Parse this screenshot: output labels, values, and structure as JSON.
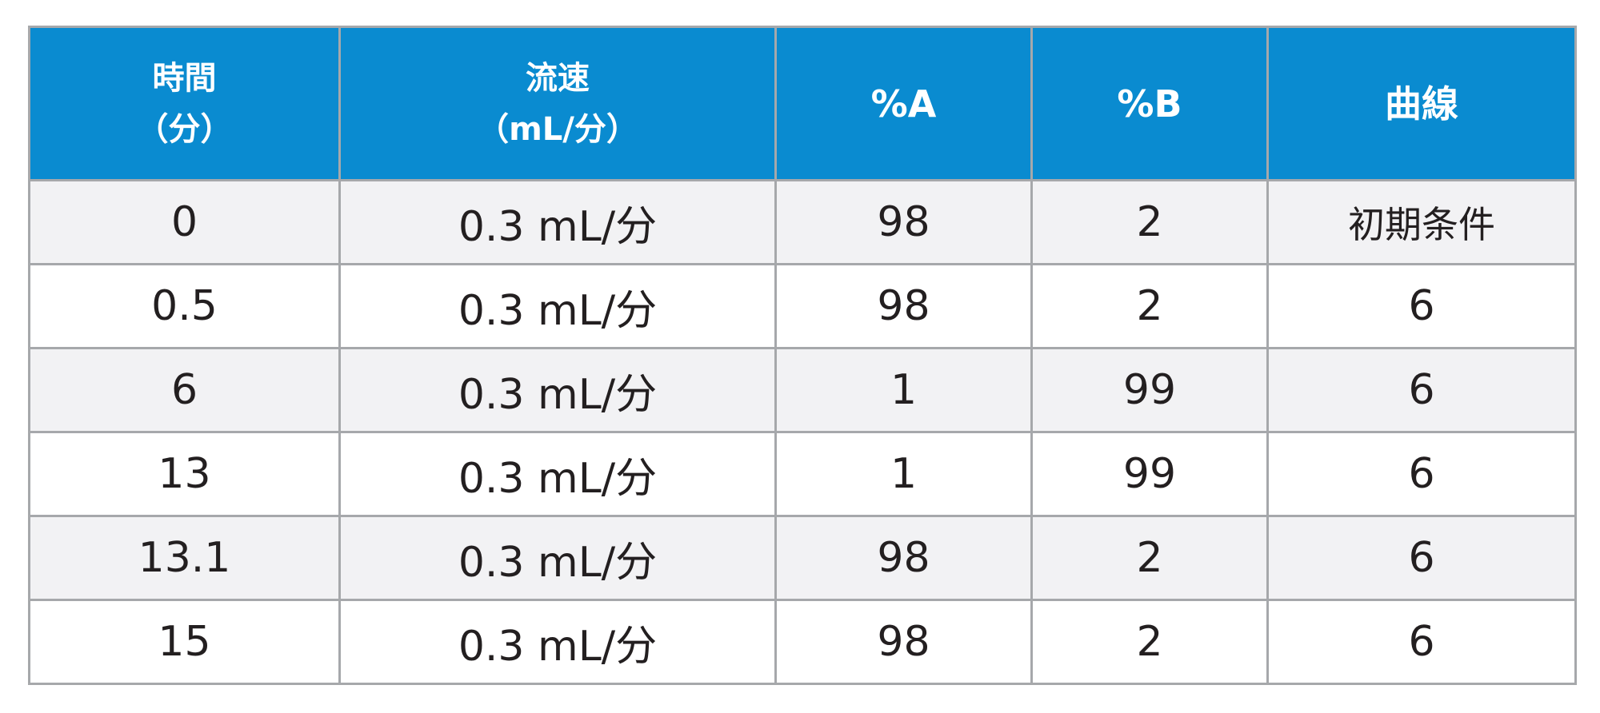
{
  "table": {
    "headers": [
      {
        "line1": "時間",
        "line2": "（分）"
      },
      {
        "line1": "流速",
        "line2": "（mL/分）"
      },
      {
        "line1": "%A",
        "line2": ""
      },
      {
        "line1": "%B",
        "line2": ""
      },
      {
        "line1": "曲線",
        "line2": ""
      }
    ],
    "rows": [
      {
        "time": "0",
        "flow": "0.3 mL/分",
        "a": "98",
        "b": "2",
        "curve": "初期条件"
      },
      {
        "time": "0.5",
        "flow": "0.3 mL/分",
        "a": "98",
        "b": "2",
        "curve": "6"
      },
      {
        "time": "6",
        "flow": "0.3 mL/分",
        "a": "1",
        "b": "99",
        "curve": "6"
      },
      {
        "time": "13",
        "flow": "0.3 mL/分",
        "a": "1",
        "b": "99",
        "curve": "6"
      },
      {
        "time": "13.1",
        "flow": "0.3 mL/分",
        "a": "98",
        "b": "2",
        "curve": "6"
      },
      {
        "time": "15",
        "flow": "0.3 mL/分",
        "a": "98",
        "b": "2",
        "curve": "6"
      }
    ]
  },
  "colors": {
    "header_bg": "#0a8bd0",
    "header_text": "#ffffff",
    "stripe": "#f2f2f4",
    "border": "#a6a8ab",
    "body_text": "#231f20"
  }
}
